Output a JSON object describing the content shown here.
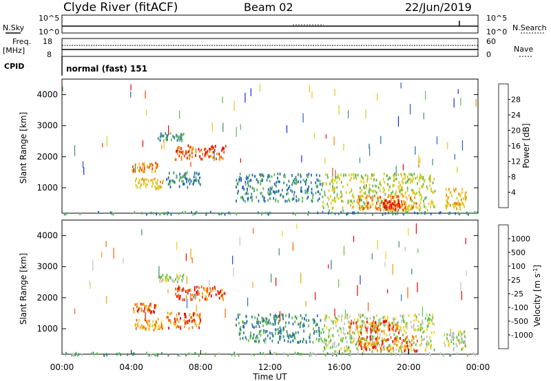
{
  "header": {
    "station": "Clyde River (fitACF)",
    "beam": "Beam 02",
    "date": "22/Jun/2019"
  },
  "noise_panel": {
    "left_label": "N.Sky",
    "right_label": "N.Search",
    "top_tick": "10^5",
    "bottom_tick": "10^0",
    "right_top_tick": "10^5",
    "right_bottom_tick": "10^0"
  },
  "freq_panel": {
    "left_label_1": "Freq.",
    "left_label_2": "[MHz]",
    "left_top_tick": "18",
    "left_bottom_tick": "8",
    "right_label": "Nave",
    "right_top_tick": "60",
    "right_bottom_tick": "0"
  },
  "cpid": {
    "label": "CPID",
    "mode": "normal (fast) 151"
  },
  "chart_data": [
    {
      "type": "heatmap",
      "name": "power",
      "ylabel": "Slant Range [km]",
      "yticks": [
        "4000",
        "3000",
        "2000",
        "1000"
      ],
      "ytick_values": [
        4000,
        3000,
        2000,
        1000
      ],
      "ylim": [
        180,
        4500
      ],
      "xlim": [
        0,
        24
      ],
      "colorbar_label": "Power [dB]",
      "colorbar_ticks": [
        "28",
        "24",
        "20",
        "16",
        "12",
        "8",
        "4"
      ],
      "colorbar_colors": [
        "#1e1ef0",
        "#2060c0",
        "#3a8a7a",
        "#5cb85c",
        "#c8d020",
        "#f0c020",
        "#f08a00",
        "#f04000",
        "#e80000"
      ],
      "regions": [
        {
          "t0": 0.0,
          "t1": 24.0,
          "r0": 180,
          "r1": 260,
          "level": 2
        },
        {
          "t0": 4.0,
          "t1": 5.5,
          "r0": 1550,
          "r1": 1850,
          "level": 6
        },
        {
          "t0": 4.2,
          "t1": 5.8,
          "r0": 1000,
          "r1": 1350,
          "level": 5
        },
        {
          "t0": 5.5,
          "t1": 7.0,
          "r0": 2550,
          "r1": 2800,
          "level": 2
        },
        {
          "t0": 6.5,
          "t1": 9.5,
          "r0": 1950,
          "r1": 2400,
          "level": 7
        },
        {
          "t0": 6.0,
          "t1": 8.0,
          "r0": 1050,
          "r1": 1550,
          "level": 2
        },
        {
          "t0": 10.0,
          "t1": 15.0,
          "r0": 600,
          "r1": 1500,
          "level": 2
        },
        {
          "t0": 15.0,
          "t1": 21.5,
          "r0": 300,
          "r1": 1500,
          "level": 4
        },
        {
          "t0": 17.0,
          "t1": 20.5,
          "r0": 300,
          "r1": 800,
          "level": 6
        },
        {
          "t0": 18.5,
          "t1": 19.5,
          "r0": 300,
          "r1": 650,
          "level": 8
        },
        {
          "t0": 22.0,
          "t1": 23.3,
          "r0": 350,
          "r1": 1000,
          "level": 5
        }
      ]
    },
    {
      "type": "heatmap",
      "name": "velocity",
      "ylabel": "Slant Range [km]",
      "yticks": [
        "4000",
        "3000",
        "2000",
        "1000"
      ],
      "ytick_values": [
        4000,
        3000,
        2000,
        1000
      ],
      "ylim": [
        180,
        4500
      ],
      "xlim": [
        0,
        24
      ],
      "xticks": [
        "00:00",
        "04:00",
        "08:00",
        "12:00",
        "16:00",
        "20:00",
        "00:00"
      ],
      "xtick_values": [
        0,
        4,
        8,
        12,
        16,
        20,
        24
      ],
      "xlabel": "Time UT",
      "colorbar_label": "Velocity [m s",
      "colorbar_label_sup": "-1",
      "colorbar_label_end": "]",
      "colorbar_ticks": [
        "1000",
        "500",
        "100",
        "25",
        "-25",
        "-100",
        "-500",
        "-1000"
      ],
      "colorbar_colors": [
        "#2040c8",
        "#2a70b0",
        "#3a8a6a",
        "#60c040",
        "#c0c0c0",
        "#f0d020",
        "#f0a000",
        "#f06000",
        "#e80000"
      ],
      "regions": [
        {
          "t0": 0.0,
          "t1": 24.0,
          "r0": 180,
          "r1": 260,
          "level": 3
        },
        {
          "t0": 4.0,
          "t1": 5.5,
          "r0": 1550,
          "r1": 1850,
          "level": 7
        },
        {
          "t0": 4.2,
          "t1": 5.8,
          "r0": 1000,
          "r1": 1350,
          "level": 6
        },
        {
          "t0": 5.5,
          "t1": 7.0,
          "r0": 2550,
          "r1": 2800,
          "level": 4
        },
        {
          "t0": 6.5,
          "t1": 9.5,
          "r0": 1950,
          "r1": 2400,
          "level": 7
        },
        {
          "t0": 6.0,
          "t1": 8.0,
          "r0": 1050,
          "r1": 1550,
          "level": 7
        },
        {
          "t0": 10.0,
          "t1": 15.0,
          "r0": 600,
          "r1": 1500,
          "level": 2
        },
        {
          "t0": 15.0,
          "t1": 21.5,
          "r0": 300,
          "r1": 1500,
          "level": 4
        },
        {
          "t0": 17.0,
          "t1": 20.5,
          "r0": 300,
          "r1": 800,
          "level": 7
        },
        {
          "t0": 16.5,
          "t1": 19.5,
          "r0": 900,
          "r1": 1300,
          "level": 7
        },
        {
          "t0": 22.0,
          "t1": 23.3,
          "r0": 350,
          "r1": 1000,
          "level": 4
        }
      ]
    }
  ]
}
